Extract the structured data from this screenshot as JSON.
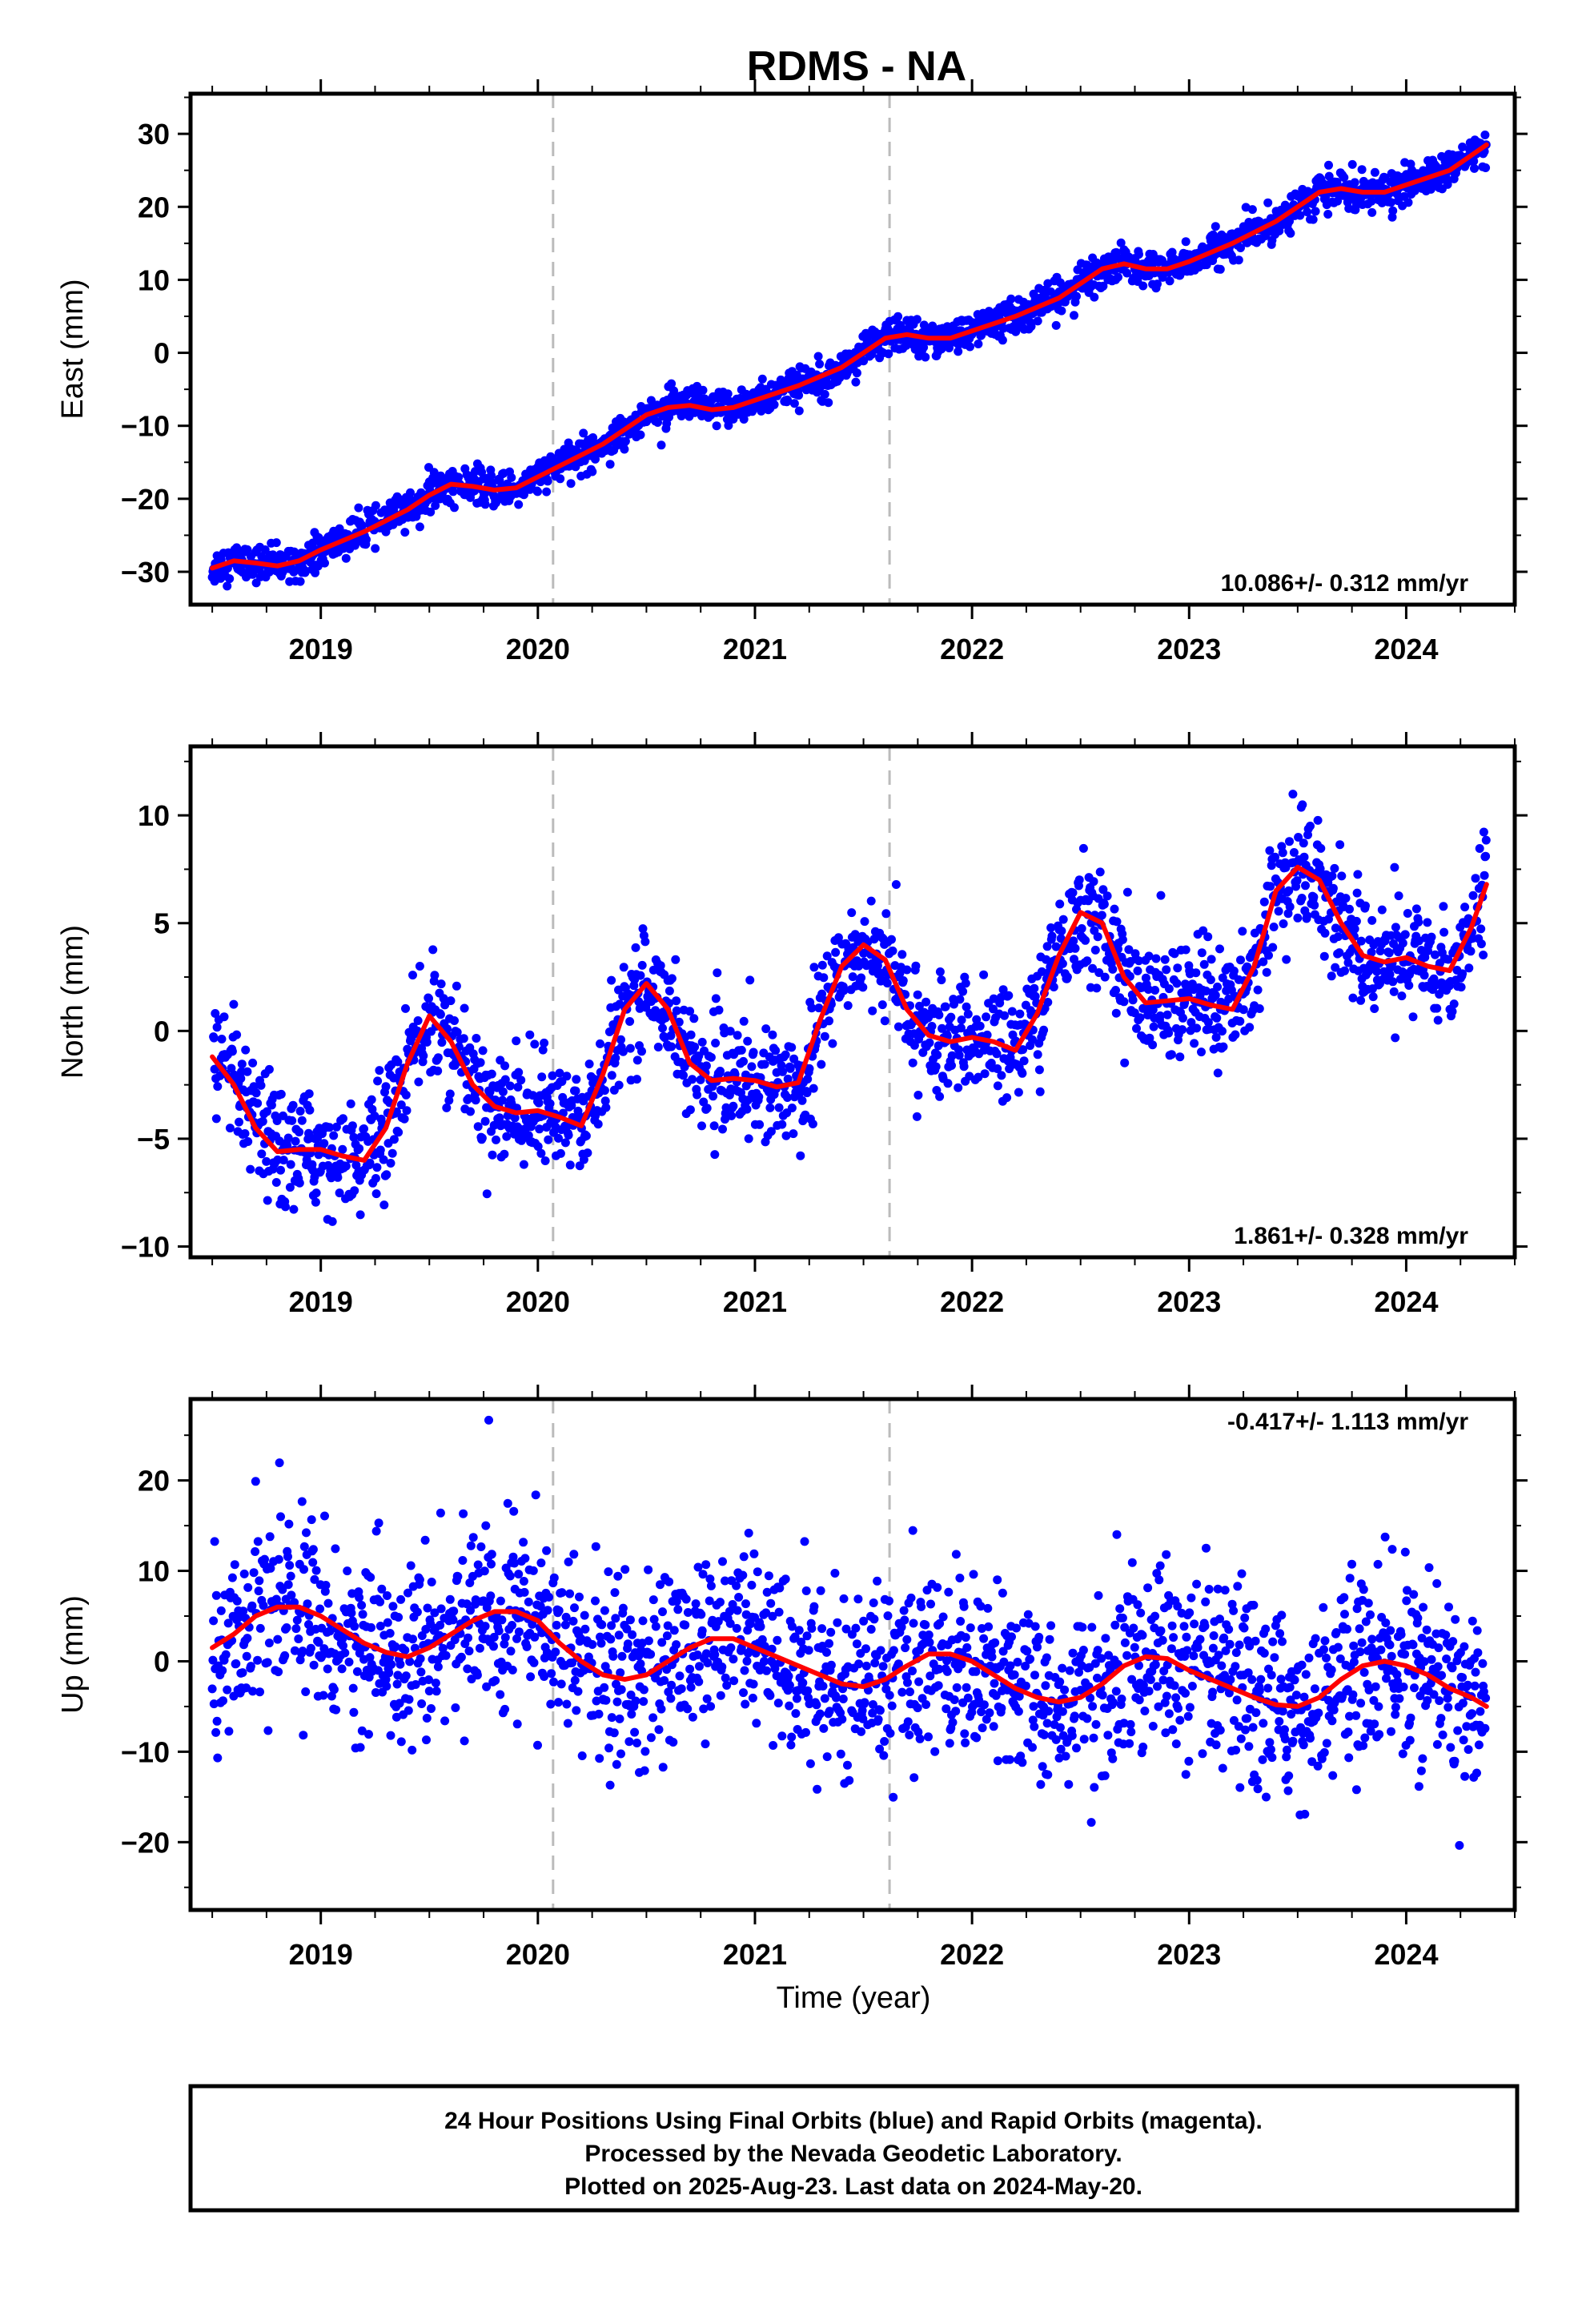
{
  "title": "RDMS - NA",
  "xlabel": "Time (year)",
  "footer": {
    "line1": "24 Hour Positions Using Final Orbits (blue) and Rapid Orbits (magenta).",
    "line2": "Processed by the Nevada Geodetic Laboratory.",
    "line3": "Plotted on 2025-Aug-23. Last data on 2024-May-20."
  },
  "colors": {
    "final_orbits": "#0000ff",
    "fit": "#ff0000",
    "event_lines": "#bbbbbb",
    "frame": "#000000"
  },
  "chart_data": [
    {
      "type": "scatter",
      "ylabel": "East (mm)",
      "rate_label": "10.086+/- 0.312 mm/yr",
      "xlim": [
        2018.4,
        2024.5
      ],
      "ylim": [
        -34.5,
        35.5
      ],
      "xticks": [
        2019,
        2020,
        2021,
        2022,
        2023,
        2024
      ],
      "yticks": [
        -30,
        -20,
        -10,
        0,
        10,
        20,
        30
      ],
      "event_lines": [
        2020.07,
        2021.62
      ],
      "series": [
        {
          "name": "Final Orbits",
          "color": "#0000ff",
          "x": [
            2018.5,
            2018.6,
            2018.7,
            2018.8,
            2018.9,
            2019.0,
            2019.2,
            2019.4,
            2019.5,
            2019.6,
            2019.7,
            2019.8,
            2019.9,
            2020.0,
            2020.1,
            2020.2,
            2020.3,
            2020.4,
            2020.5,
            2020.6,
            2020.7,
            2020.8,
            2020.9,
            2021.0,
            2021.2,
            2021.4,
            2021.5,
            2021.6,
            2021.7,
            2021.8,
            2021.9,
            2022.0,
            2022.2,
            2022.4,
            2022.5,
            2022.6,
            2022.7,
            2022.8,
            2022.9,
            2023.0,
            2023.2,
            2023.4,
            2023.5,
            2023.6,
            2023.7,
            2023.8,
            2023.9,
            2024.0,
            2024.2,
            2024.37
          ],
          "y": [
            -29.5,
            -28.5,
            -28.8,
            -29.2,
            -28.5,
            -27,
            -24.5,
            -21.5,
            -19.5,
            -18,
            -18.3,
            -18.8,
            -18.5,
            -17,
            -15.5,
            -14,
            -12.5,
            -10.5,
            -8.5,
            -7.5,
            -7.2,
            -7.8,
            -7.5,
            -6.5,
            -4.5,
            -2,
            0,
            2,
            2.5,
            2,
            2,
            3,
            5,
            7.5,
            9.5,
            11.5,
            12.2,
            11.5,
            11.5,
            12.5,
            15,
            18,
            20,
            22,
            22.5,
            22,
            22,
            23,
            25,
            28.5
          ],
          "scatter_sd": 1.2
        },
        {
          "name": "Fit",
          "color": "#ff0000",
          "x": [
            2018.5,
            2018.6,
            2018.7,
            2018.8,
            2018.9,
            2019.0,
            2019.2,
            2019.4,
            2019.5,
            2019.6,
            2019.7,
            2019.8,
            2019.9,
            2020.0,
            2020.1,
            2020.2,
            2020.3,
            2020.4,
            2020.5,
            2020.6,
            2020.7,
            2020.8,
            2020.9,
            2021.0,
            2021.2,
            2021.4,
            2021.5,
            2021.6,
            2021.7,
            2021.8,
            2021.9,
            2022.0,
            2022.2,
            2022.4,
            2022.5,
            2022.6,
            2022.7,
            2022.8,
            2022.9,
            2023.0,
            2023.2,
            2023.4,
            2023.5,
            2023.6,
            2023.7,
            2023.8,
            2023.9,
            2024.0,
            2024.2,
            2024.37
          ],
          "y": [
            -29.5,
            -28.5,
            -28.8,
            -29.2,
            -28.5,
            -27,
            -24.5,
            -21.5,
            -19.5,
            -18,
            -18.3,
            -18.8,
            -18.5,
            -17,
            -15.5,
            -14,
            -12.5,
            -10.5,
            -8.5,
            -7.5,
            -7.2,
            -7.8,
            -7.5,
            -6.5,
            -4.5,
            -2,
            0,
            2,
            2.5,
            2,
            2,
            3,
            5,
            7.5,
            9.5,
            11.5,
            12.2,
            11.5,
            11.5,
            12.5,
            15,
            18,
            20,
            22,
            22.5,
            22,
            22,
            23,
            25,
            28.5
          ]
        }
      ]
    },
    {
      "type": "scatter",
      "ylabel": "North (mm)",
      "rate_label": "1.861+/- 0.328 mm/yr",
      "xlim": [
        2018.4,
        2024.5
      ],
      "ylim": [
        -10.5,
        13.2
      ],
      "xticks": [
        2019,
        2020,
        2021,
        2022,
        2023,
        2024
      ],
      "yticks": [
        -10,
        -5,
        0,
        5,
        10
      ],
      "event_lines": [
        2020.07,
        2021.62
      ],
      "series": [
        {
          "name": "Final Orbits",
          "color": "#0000ff",
          "x": [
            2018.5,
            2018.6,
            2018.7,
            2018.8,
            2018.9,
            2019.0,
            2019.1,
            2019.2,
            2019.3,
            2019.4,
            2019.5,
            2019.6,
            2019.7,
            2019.8,
            2019.9,
            2020.0,
            2020.1,
            2020.2,
            2020.3,
            2020.4,
            2020.5,
            2020.6,
            2020.7,
            2020.8,
            2020.9,
            2021.0,
            2021.1,
            2021.2,
            2021.3,
            2021.4,
            2021.5,
            2021.6,
            2021.7,
            2021.8,
            2021.9,
            2022.0,
            2022.1,
            2022.2,
            2022.3,
            2022.4,
            2022.5,
            2022.6,
            2022.7,
            2022.8,
            2022.9,
            2023.0,
            2023.1,
            2023.2,
            2023.3,
            2023.4,
            2023.5,
            2023.6,
            2023.7,
            2023.8,
            2023.9,
            2024.0,
            2024.1,
            2024.2,
            2024.3,
            2024.37
          ],
          "y": [
            -1.2,
            -2.5,
            -4.5,
            -5.6,
            -5.5,
            -5.5,
            -5.8,
            -6.0,
            -4.5,
            -1.5,
            0.7,
            -0.5,
            -2.5,
            -3.5,
            -3.8,
            -3.7,
            -4.0,
            -4.4,
            -2.0,
            1.0,
            2.2,
            1.0,
            -1.5,
            -2.3,
            -2.2,
            -2.3,
            -2.6,
            -2.4,
            0.5,
            3.0,
            4.0,
            3.3,
            1.0,
            -0.2,
            -0.5,
            -0.3,
            -0.5,
            -0.9,
            0.8,
            3.5,
            5.5,
            5.0,
            2.5,
            1.3,
            1.4,
            1.5,
            1.2,
            1.0,
            3.0,
            6.5,
            7.6,
            7.0,
            5.0,
            3.5,
            3.2,
            3.4,
            3.0,
            2.8,
            4.8,
            6.8
          ],
          "scatter_sd": 1.3
        },
        {
          "name": "Fit",
          "color": "#ff0000",
          "x": [
            2018.5,
            2018.6,
            2018.7,
            2018.8,
            2018.9,
            2019.0,
            2019.1,
            2019.2,
            2019.3,
            2019.4,
            2019.5,
            2019.6,
            2019.7,
            2019.8,
            2019.9,
            2020.0,
            2020.1,
            2020.2,
            2020.3,
            2020.4,
            2020.5,
            2020.6,
            2020.7,
            2020.8,
            2020.9,
            2021.0,
            2021.1,
            2021.2,
            2021.3,
            2021.4,
            2021.5,
            2021.6,
            2021.7,
            2021.8,
            2021.9,
            2022.0,
            2022.1,
            2022.2,
            2022.3,
            2022.4,
            2022.5,
            2022.6,
            2022.7,
            2022.8,
            2022.9,
            2023.0,
            2023.1,
            2023.2,
            2023.3,
            2023.4,
            2023.5,
            2023.6,
            2023.7,
            2023.8,
            2023.9,
            2024.0,
            2024.1,
            2024.2,
            2024.3,
            2024.37
          ],
          "y": [
            -1.2,
            -2.5,
            -4.5,
            -5.6,
            -5.5,
            -5.5,
            -5.8,
            -6.0,
            -4.5,
            -1.5,
            0.7,
            -0.5,
            -2.5,
            -3.5,
            -3.8,
            -3.7,
            -4.0,
            -4.4,
            -2.0,
            1.0,
            2.2,
            1.0,
            -1.5,
            -2.3,
            -2.2,
            -2.3,
            -2.6,
            -2.4,
            0.5,
            3.0,
            4.0,
            3.3,
            1.0,
            -0.2,
            -0.5,
            -0.3,
            -0.5,
            -0.9,
            0.8,
            3.5,
            5.5,
            5.0,
            2.5,
            1.3,
            1.4,
            1.5,
            1.2,
            1.0,
            3.0,
            6.5,
            7.6,
            7.0,
            5.0,
            3.5,
            3.2,
            3.4,
            3.0,
            2.8,
            4.8,
            6.8
          ]
        }
      ]
    },
    {
      "type": "scatter",
      "ylabel": "Up (mm)",
      "rate_label": "-0.417+/- 1.113 mm/yr",
      "xlim": [
        2018.4,
        2024.5
      ],
      "ylim": [
        -27.5,
        29
      ],
      "xticks": [
        2019,
        2020,
        2021,
        2022,
        2023,
        2024
      ],
      "yticks": [
        -20,
        -10,
        0,
        10,
        20
      ],
      "event_lines": [
        2020.07,
        2021.62
      ],
      "series": [
        {
          "name": "Final Orbits",
          "color": "#0000ff",
          "x": [
            2018.5,
            2018.6,
            2018.7,
            2018.8,
            2018.9,
            2019.0,
            2019.1,
            2019.2,
            2019.3,
            2019.4,
            2019.5,
            2019.6,
            2019.7,
            2019.8,
            2019.9,
            2020.0,
            2020.1,
            2020.2,
            2020.3,
            2020.4,
            2020.5,
            2020.6,
            2020.7,
            2020.8,
            2020.9,
            2021.0,
            2021.1,
            2021.2,
            2021.3,
            2021.4,
            2021.5,
            2021.6,
            2021.7,
            2021.8,
            2021.9,
            2022.0,
            2022.1,
            2022.2,
            2022.3,
            2022.4,
            2022.5,
            2022.6,
            2022.7,
            2022.8,
            2022.9,
            2023.0,
            2023.1,
            2023.2,
            2023.3,
            2023.4,
            2023.5,
            2023.6,
            2023.7,
            2023.8,
            2023.9,
            2024.0,
            2024.1,
            2024.2,
            2024.3,
            2024.37
          ],
          "y": [
            1.5,
            3,
            5,
            6,
            6,
            5,
            3.5,
            2,
            1,
            0.5,
            1.5,
            3,
            4.5,
            5.5,
            5.5,
            4.5,
            2,
            0,
            -1.5,
            -2,
            -1.5,
            0,
            1.5,
            2.5,
            2.5,
            1.5,
            0.5,
            -0.5,
            -1.5,
            -2.5,
            -2.8,
            -2,
            -0.5,
            0.8,
            0.8,
            0,
            -1.5,
            -3,
            -4,
            -4.5,
            -4,
            -2.5,
            -0.5,
            0.5,
            0.3,
            -1,
            -2,
            -3,
            -4,
            -4.8,
            -5,
            -4,
            -2,
            -0.5,
            0,
            -0.5,
            -1.5,
            -3,
            -4,
            -5
          ],
          "scatter_sd": 5
        },
        {
          "name": "Fit",
          "color": "#ff0000",
          "x": [
            2018.5,
            2018.6,
            2018.7,
            2018.8,
            2018.9,
            2019.0,
            2019.1,
            2019.2,
            2019.3,
            2019.4,
            2019.5,
            2019.6,
            2019.7,
            2019.8,
            2019.9,
            2020.0,
            2020.1,
            2020.2,
            2020.3,
            2020.4,
            2020.5,
            2020.6,
            2020.7,
            2020.8,
            2020.9,
            2021.0,
            2021.1,
            2021.2,
            2021.3,
            2021.4,
            2021.5,
            2021.6,
            2021.7,
            2021.8,
            2021.9,
            2022.0,
            2022.1,
            2022.2,
            2022.3,
            2022.4,
            2022.5,
            2022.6,
            2022.7,
            2022.8,
            2022.9,
            2023.0,
            2023.1,
            2023.2,
            2023.3,
            2023.4,
            2023.5,
            2023.6,
            2023.7,
            2023.8,
            2023.9,
            2024.0,
            2024.1,
            2024.2,
            2024.3,
            2024.37
          ],
          "y": [
            1.5,
            3,
            5,
            6,
            6,
            5,
            3.5,
            2,
            1,
            0.5,
            1.5,
            3,
            4.5,
            5.5,
            5.5,
            4.5,
            2,
            0,
            -1.5,
            -2,
            -1.5,
            0,
            1.5,
            2.5,
            2.5,
            1.5,
            0.5,
            -0.5,
            -1.5,
            -2.5,
            -2.8,
            -2,
            -0.5,
            0.8,
            0.8,
            0,
            -1.5,
            -3,
            -4,
            -4.5,
            -4,
            -2.5,
            -0.5,
            0.5,
            0.3,
            -1,
            -2,
            -3,
            -4,
            -4.8,
            -5,
            -4,
            -2,
            -0.5,
            0,
            -0.5,
            -1.5,
            -3,
            -4,
            -5
          ]
        }
      ]
    }
  ]
}
